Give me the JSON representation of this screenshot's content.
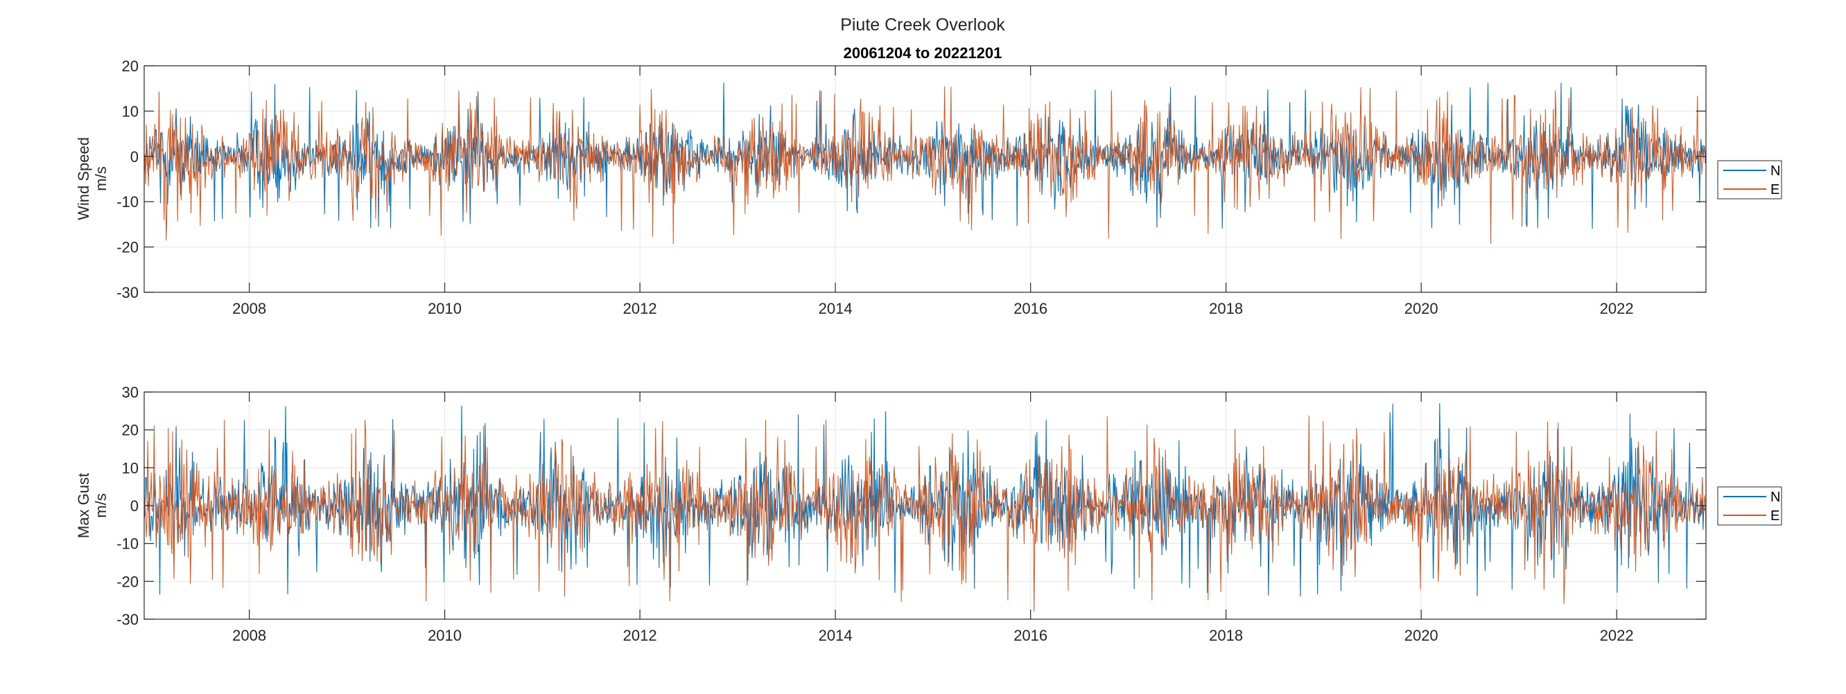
{
  "figure": {
    "suptitle": "Piute Creek Overlook",
    "subtitle": "20061204 to 20221201"
  },
  "colors": {
    "N": "#0072BD",
    "E": "#D95319",
    "axis": "#262626",
    "grid": "#e6e6e6",
    "background": "#ffffff"
  },
  "chart_data": [
    {
      "type": "line",
      "title": "20061204 to 20221201",
      "ylabel_line1": "Wind Speed",
      "ylabel_line2": "m/s",
      "xlabel": "",
      "xlim": [
        "2006-12-04",
        "2022-12-01"
      ],
      "ylim": [
        -30,
        20
      ],
      "yticks": [
        "20",
        "10",
        "0",
        "-10",
        "-20",
        "-30"
      ],
      "xticks": [
        "2008",
        "2010",
        "2012",
        "2014",
        "2016",
        "2018",
        "2020",
        "2022"
      ],
      "grid": true,
      "legend": {
        "placement": "outside-right",
        "entries": [
          "N",
          "E"
        ]
      },
      "series": [
        {
          "name": "N",
          "color": "#0072BD",
          "typical_envelope": [
            -8,
            8
          ],
          "extreme_range": [
            -16,
            17
          ]
        },
        {
          "name": "E",
          "color": "#D95319",
          "typical_envelope": [
            -9,
            9
          ],
          "extreme_range": [
            -20,
            16
          ]
        }
      ]
    },
    {
      "type": "line",
      "title": "",
      "ylabel_line1": "Max Gust",
      "ylabel_line2": "m/s",
      "xlabel": "",
      "xlim": [
        "2006-12-04",
        "2022-12-01"
      ],
      "ylim": [
        -30,
        30
      ],
      "yticks": [
        "30",
        "20",
        "10",
        "0",
        "-10",
        "-20",
        "-30"
      ],
      "xticks": [
        "2008",
        "2010",
        "2012",
        "2014",
        "2016",
        "2018",
        "2020",
        "2022"
      ],
      "grid": true,
      "legend": {
        "placement": "outside-right",
        "entries": [
          "N",
          "E"
        ]
      },
      "series": [
        {
          "name": "N",
          "color": "#0072BD",
          "typical_envelope": [
            -13,
            13
          ],
          "extreme_range": [
            -24,
            27
          ]
        },
        {
          "name": "E",
          "color": "#D95319",
          "typical_envelope": [
            -14,
            14
          ],
          "extreme_range": [
            -28,
            24
          ]
        }
      ]
    }
  ]
}
